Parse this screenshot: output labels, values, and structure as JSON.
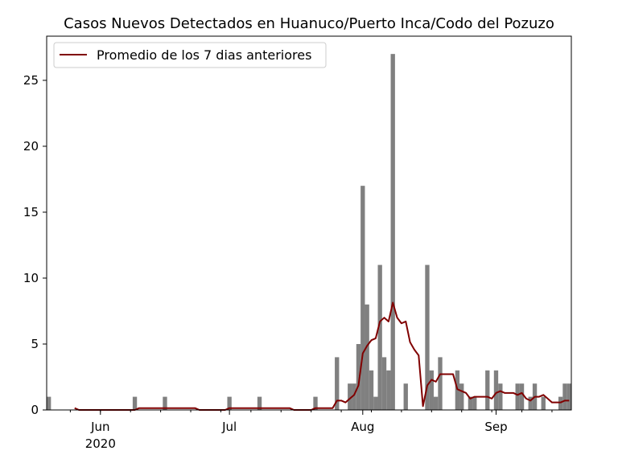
{
  "chart_data": {
    "type": "bar",
    "title": "Casos Nuevos Detectados en Huanuco/Puerto Inca/Codo del Pozuzo",
    "xlabel": "",
    "ylabel": "",
    "ylim": [
      0,
      28.35
    ],
    "x_range": [
      "2020-05-20",
      "2020-09-18"
    ],
    "grid": false,
    "legend_position": "top-left",
    "bar_color": "#808080",
    "line_color": "#800000",
    "x_ticks": [
      {
        "date": "2020-06-01",
        "label": "Jun"
      },
      {
        "date": "2020-07-01",
        "label": "Jul"
      },
      {
        "date": "2020-08-01",
        "label": "Aug"
      },
      {
        "date": "2020-09-01",
        "label": "Sep"
      }
    ],
    "year_label": "2020",
    "y_ticks": [
      0,
      5,
      10,
      15,
      20,
      25
    ],
    "bars": [
      {
        "date": "2020-05-20",
        "value": 1
      },
      {
        "date": "2020-06-09",
        "value": 1
      },
      {
        "date": "2020-06-16",
        "value": 1
      },
      {
        "date": "2020-07-01",
        "value": 1
      },
      {
        "date": "2020-07-08",
        "value": 1
      },
      {
        "date": "2020-07-21",
        "value": 1
      },
      {
        "date": "2020-07-26",
        "value": 4
      },
      {
        "date": "2020-07-29",
        "value": 2
      },
      {
        "date": "2020-07-30",
        "value": 2
      },
      {
        "date": "2020-07-31",
        "value": 5
      },
      {
        "date": "2020-08-01",
        "value": 17
      },
      {
        "date": "2020-08-02",
        "value": 8
      },
      {
        "date": "2020-08-03",
        "value": 3
      },
      {
        "date": "2020-08-04",
        "value": 1
      },
      {
        "date": "2020-08-05",
        "value": 11
      },
      {
        "date": "2020-08-06",
        "value": 4
      },
      {
        "date": "2020-08-07",
        "value": 3
      },
      {
        "date": "2020-08-08",
        "value": 27
      },
      {
        "date": "2020-08-11",
        "value": 2
      },
      {
        "date": "2020-08-16",
        "value": 11
      },
      {
        "date": "2020-08-17",
        "value": 3
      },
      {
        "date": "2020-08-18",
        "value": 1
      },
      {
        "date": "2020-08-19",
        "value": 4
      },
      {
        "date": "2020-08-23",
        "value": 3
      },
      {
        "date": "2020-08-24",
        "value": 2
      },
      {
        "date": "2020-08-26",
        "value": 1
      },
      {
        "date": "2020-08-27",
        "value": 1
      },
      {
        "date": "2020-08-30",
        "value": 3
      },
      {
        "date": "2020-09-01",
        "value": 3
      },
      {
        "date": "2020-09-02",
        "value": 2
      },
      {
        "date": "2020-09-06",
        "value": 2
      },
      {
        "date": "2020-09-07",
        "value": 2
      },
      {
        "date": "2020-09-09",
        "value": 1
      },
      {
        "date": "2020-09-10",
        "value": 2
      },
      {
        "date": "2020-09-12",
        "value": 1
      },
      {
        "date": "2020-09-16",
        "value": 1
      },
      {
        "date": "2020-09-17",
        "value": 2
      },
      {
        "date": "2020-09-18",
        "value": 2
      }
    ],
    "series": [
      {
        "name": "Promedio de los 7 dias anteriores",
        "points": [
          [
            "2020-05-26",
            0.14
          ],
          [
            "2020-05-27",
            0.0
          ],
          [
            "2020-06-09",
            0.0
          ],
          [
            "2020-06-10",
            0.14
          ],
          [
            "2020-06-23",
            0.14
          ],
          [
            "2020-06-24",
            0.0
          ],
          [
            "2020-06-30",
            0.0
          ],
          [
            "2020-07-01",
            0.14
          ],
          [
            "2020-07-15",
            0.14
          ],
          [
            "2020-07-16",
            0.0
          ],
          [
            "2020-07-20",
            0.0
          ],
          [
            "2020-07-21",
            0.14
          ],
          [
            "2020-07-25",
            0.14
          ],
          [
            "2020-07-26",
            0.71
          ],
          [
            "2020-07-27",
            0.71
          ],
          [
            "2020-07-28",
            0.57
          ],
          [
            "2020-07-29",
            0.86
          ],
          [
            "2020-07-30",
            1.14
          ],
          [
            "2020-07-31",
            1.86
          ],
          [
            "2020-08-01",
            4.29
          ],
          [
            "2020-08-02",
            4.86
          ],
          [
            "2020-08-03",
            5.29
          ],
          [
            "2020-08-04",
            5.43
          ],
          [
            "2020-08-05",
            6.71
          ],
          [
            "2020-08-06",
            7.0
          ],
          [
            "2020-08-07",
            6.71
          ],
          [
            "2020-08-08",
            8.14
          ],
          [
            "2020-08-09",
            7.0
          ],
          [
            "2020-08-10",
            6.57
          ],
          [
            "2020-08-11",
            6.71
          ],
          [
            "2020-08-12",
            5.14
          ],
          [
            "2020-08-13",
            4.57
          ],
          [
            "2020-08-14",
            4.14
          ],
          [
            "2020-08-15",
            0.29
          ],
          [
            "2020-08-16",
            1.86
          ],
          [
            "2020-08-17",
            2.29
          ],
          [
            "2020-08-18",
            2.14
          ],
          [
            "2020-08-19",
            2.71
          ],
          [
            "2020-08-20",
            2.71
          ],
          [
            "2020-08-21",
            2.71
          ],
          [
            "2020-08-22",
            2.71
          ],
          [
            "2020-08-23",
            1.57
          ],
          [
            "2020-08-24",
            1.43
          ],
          [
            "2020-08-25",
            1.29
          ],
          [
            "2020-08-26",
            0.86
          ],
          [
            "2020-08-27",
            1.0
          ],
          [
            "2020-08-28",
            1.0
          ],
          [
            "2020-08-29",
            1.0
          ],
          [
            "2020-08-30",
            1.0
          ],
          [
            "2020-08-31",
            0.86
          ],
          [
            "2020-09-01",
            1.29
          ],
          [
            "2020-09-02",
            1.43
          ],
          [
            "2020-09-03",
            1.29
          ],
          [
            "2020-09-04",
            1.29
          ],
          [
            "2020-09-05",
            1.29
          ],
          [
            "2020-09-06",
            1.14
          ],
          [
            "2020-09-07",
            1.29
          ],
          [
            "2020-09-08",
            0.86
          ],
          [
            "2020-09-09",
            0.71
          ],
          [
            "2020-09-10",
            1.0
          ],
          [
            "2020-09-11",
            1.0
          ],
          [
            "2020-09-12",
            1.14
          ],
          [
            "2020-09-13",
            0.86
          ],
          [
            "2020-09-14",
            0.57
          ],
          [
            "2020-09-15",
            0.57
          ],
          [
            "2020-09-16",
            0.57
          ],
          [
            "2020-09-17",
            0.71
          ],
          [
            "2020-09-18",
            0.71
          ]
        ]
      }
    ]
  }
}
